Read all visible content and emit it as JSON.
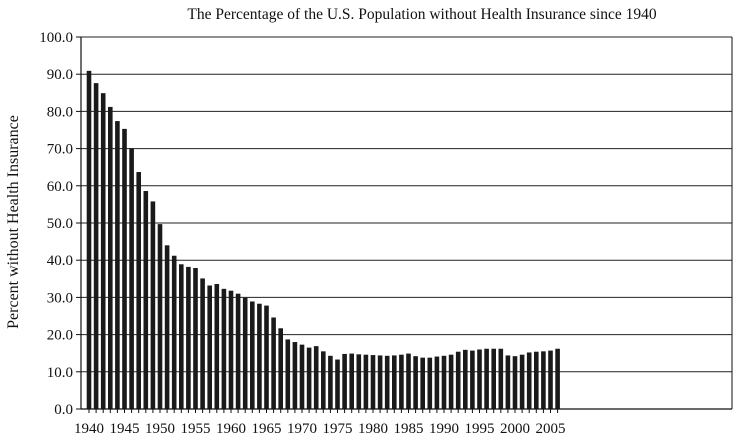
{
  "chart_data": {
    "type": "bar",
    "title": "The Percentage of the U.S. Population without Health Insurance since 1940",
    "xlabel": "",
    "ylabel": "Percent without Health Insurance",
    "ylim": [
      0,
      100
    ],
    "yticks": [
      "0.0",
      "10.0",
      "20.0",
      "30.0",
      "40.0",
      "50.0",
      "60.0",
      "70.0",
      "80.0",
      "90.0",
      "100.0"
    ],
    "xticks": [
      "1940",
      "1945",
      "1950",
      "1955",
      "1960",
      "1965",
      "1970",
      "1975",
      "1980",
      "1985",
      "1990",
      "1995",
      "2000",
      "2005"
    ],
    "grid": true,
    "legend": "none",
    "bar_color": "#1a1a1a",
    "categories": [
      1940,
      1941,
      1942,
      1943,
      1944,
      1945,
      1946,
      1947,
      1948,
      1949,
      1950,
      1951,
      1952,
      1953,
      1954,
      1955,
      1956,
      1957,
      1958,
      1959,
      1960,
      1961,
      1962,
      1963,
      1964,
      1965,
      1966,
      1967,
      1968,
      1969,
      1970,
      1971,
      1972,
      1973,
      1974,
      1975,
      1976,
      1977,
      1978,
      1979,
      1980,
      1981,
      1982,
      1983,
      1984,
      1985,
      1986,
      1987,
      1988,
      1989,
      1990,
      1991,
      1992,
      1993,
      1994,
      1995,
      1996,
      1997,
      1998,
      1999,
      2000,
      2001,
      2002,
      2003,
      2004,
      2005,
      2006
    ],
    "values": [
      90.9,
      87.6,
      84.9,
      81.2,
      77.4,
      75.3,
      70.1,
      63.7,
      58.6,
      55.8,
      49.7,
      44.0,
      41.2,
      38.9,
      38.2,
      37.9,
      35.1,
      33.2,
      33.6,
      32.3,
      31.8,
      31.0,
      29.9,
      28.9,
      28.3,
      27.8,
      24.6,
      21.7,
      18.7,
      18.0,
      17.3,
      16.5,
      16.9,
      15.5,
      14.3,
      13.3,
      14.8,
      14.9,
      14.7,
      14.6,
      14.5,
      14.4,
      14.3,
      14.4,
      14.6,
      14.9,
      14.2,
      13.8,
      13.8,
      14.1,
      14.3,
      14.6,
      15.4,
      15.9,
      15.7,
      16.0,
      16.2,
      16.2,
      16.2,
      14.4,
      14.2,
      14.6,
      15.2,
      15.4,
      15.5,
      15.7,
      16.2
    ]
  }
}
